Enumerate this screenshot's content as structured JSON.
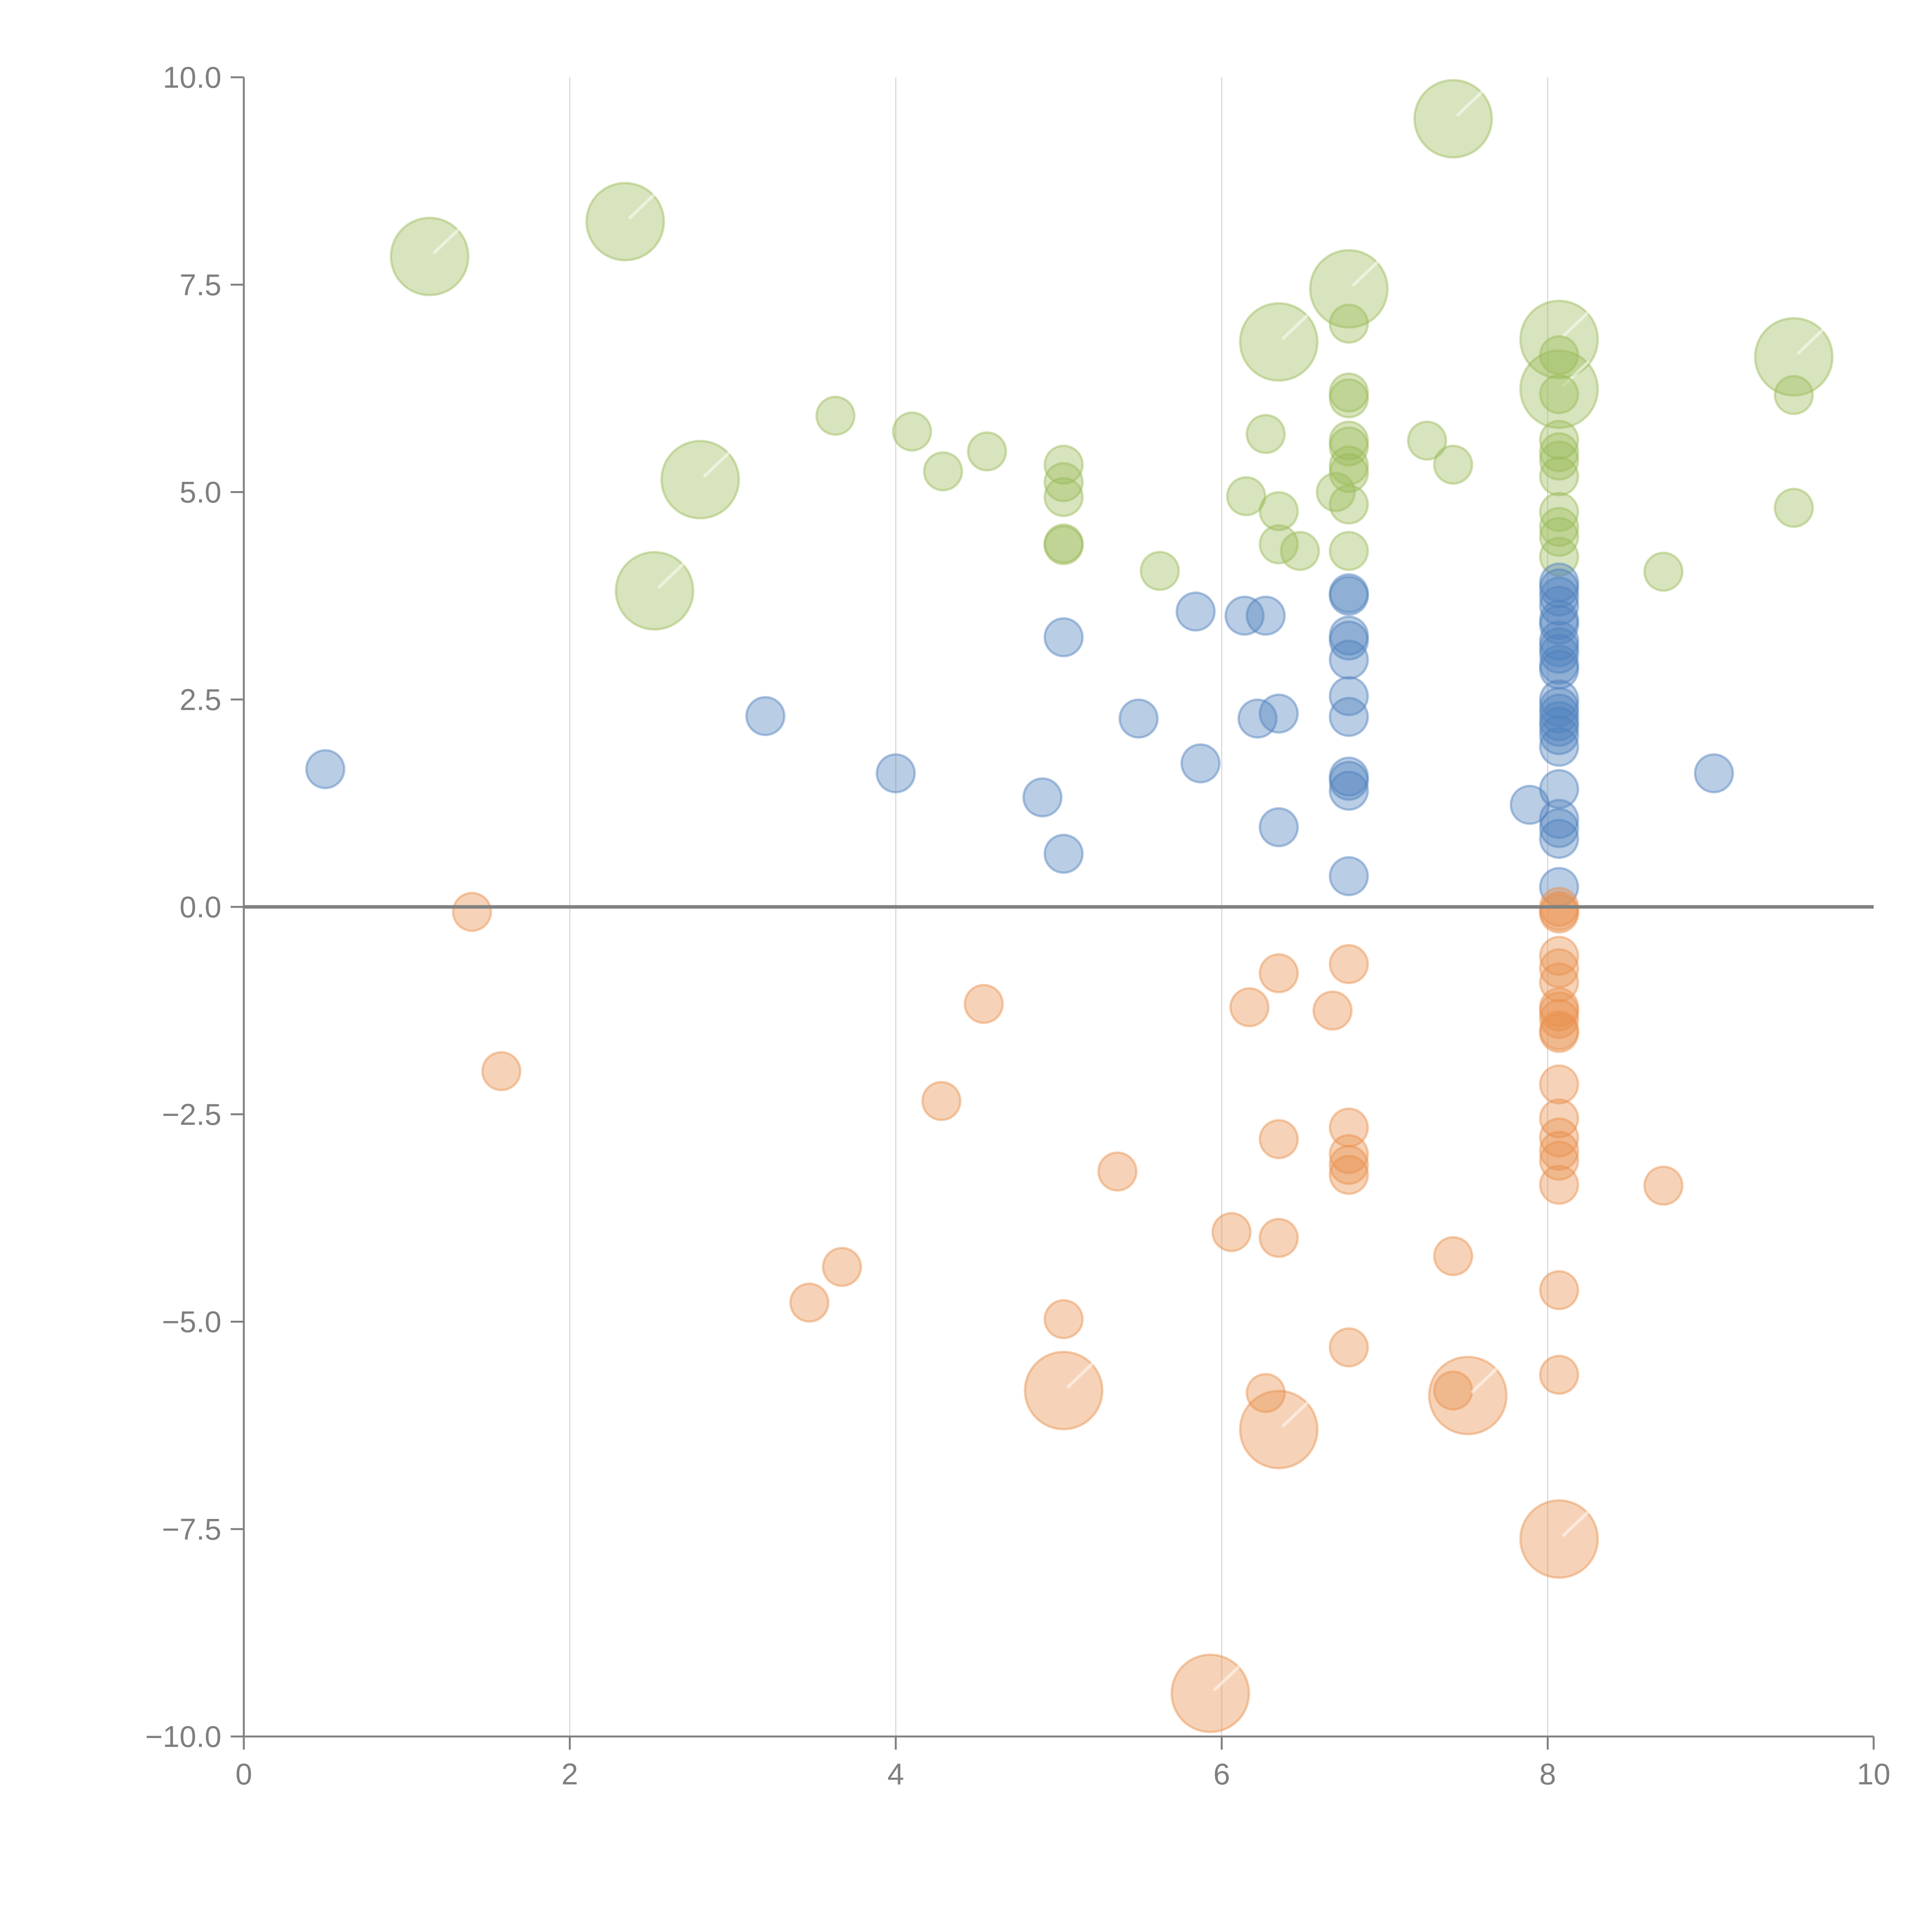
{
  "chart_data": {
    "type": "scatter",
    "title": "",
    "xlabel": "",
    "ylabel": "",
    "xlim": [
      0,
      10
    ],
    "ylim": [
      -10,
      10
    ],
    "x_ticks": [
      "0",
      "2",
      "4",
      "6",
      "8",
      "10"
    ],
    "y_ticks": [
      "10.0",
      "7.5",
      "5.0",
      "2.5",
      "0.0",
      "−2.5",
      "−5.0",
      "−7.5",
      "−10.0"
    ],
    "x_tick_values": [
      0,
      2,
      4,
      6,
      8,
      10
    ],
    "y_tick_values": [
      10,
      7.5,
      5,
      2.5,
      0,
      -2.5,
      -5,
      -7.5,
      -10
    ],
    "grid": {
      "vertical": true,
      "horizontal": false
    },
    "reference_line_y": 0,
    "size_note": "small bubbles size 1, large bubbles size 4",
    "series": [
      {
        "name": "green",
        "color": "#9bbb59",
        "points": [
          [
            1.14,
            7.84,
            4
          ],
          [
            2.34,
            8.26,
            4
          ],
          [
            2.8,
            5.15,
            4
          ],
          [
            2.52,
            3.81,
            4
          ],
          [
            3.63,
            5.92,
            1
          ],
          [
            4.1,
            5.73,
            1
          ],
          [
            4.29,
            5.25,
            1
          ],
          [
            4.56,
            5.49,
            1
          ],
          [
            5.03,
            5.33,
            1
          ],
          [
            5.03,
            5.12,
            1
          ],
          [
            5.03,
            4.94,
            1
          ],
          [
            5.03,
            4.38,
            1
          ],
          [
            5.03,
            4.36,
            1
          ],
          [
            5.62,
            4.05,
            1
          ],
          [
            6.15,
            4.95,
            1
          ],
          [
            6.27,
            5.7,
            1
          ],
          [
            6.35,
            4.77,
            1
          ],
          [
            6.35,
            4.37,
            1
          ],
          [
            6.48,
            4.29,
            1
          ],
          [
            6.35,
            6.81,
            4
          ],
          [
            6.7,
            5.0,
            1
          ],
          [
            6.78,
            7.45,
            4
          ],
          [
            6.78,
            7.03,
            1
          ],
          [
            6.78,
            6.2,
            1
          ],
          [
            6.78,
            6.13,
            1
          ],
          [
            6.78,
            5.62,
            1
          ],
          [
            6.78,
            5.55,
            1
          ],
          [
            6.78,
            5.32,
            1
          ],
          [
            6.78,
            5.23,
            1
          ],
          [
            6.78,
            4.85,
            1
          ],
          [
            6.78,
            4.29,
            1
          ],
          [
            7.26,
            5.62,
            1
          ],
          [
            7.42,
            5.33,
            1
          ],
          [
            7.42,
            9.5,
            4
          ],
          [
            8.07,
            6.84,
            4
          ],
          [
            8.07,
            6.24,
            4
          ],
          [
            8.07,
            6.65,
            1
          ],
          [
            8.07,
            6.18,
            1
          ],
          [
            8.07,
            5.63,
            1
          ],
          [
            8.07,
            5.48,
            1
          ],
          [
            8.07,
            5.38,
            1
          ],
          [
            8.07,
            5.19,
            1
          ],
          [
            8.07,
            4.76,
            1
          ],
          [
            8.07,
            4.58,
            1
          ],
          [
            8.07,
            4.46,
            1
          ],
          [
            8.07,
            4.22,
            1
          ],
          [
            8.71,
            4.04,
            1
          ],
          [
            9.51,
            6.63,
            4
          ],
          [
            9.51,
            6.17,
            1
          ],
          [
            9.51,
            4.81,
            1
          ]
        ]
      },
      {
        "name": "blue",
        "color": "#4f81bd",
        "points": [
          [
            0.5,
            1.66,
            1
          ],
          [
            3.2,
            2.3,
            1
          ],
          [
            4.0,
            1.61,
            1
          ],
          [
            4.9,
            1.32,
            1
          ],
          [
            5.03,
            3.25,
            1
          ],
          [
            5.03,
            0.64,
            1
          ],
          [
            5.49,
            2.27,
            1
          ],
          [
            5.84,
            3.56,
            1
          ],
          [
            5.87,
            1.73,
            1
          ],
          [
            6.14,
            3.51,
            1
          ],
          [
            6.27,
            3.51,
            1
          ],
          [
            6.22,
            2.27,
            1
          ],
          [
            6.35,
            2.33,
            1
          ],
          [
            6.35,
            0.96,
            1
          ],
          [
            6.78,
            3.78,
            1
          ],
          [
            6.78,
            3.75,
            1
          ],
          [
            6.78,
            3.27,
            1
          ],
          [
            6.78,
            3.21,
            1
          ],
          [
            6.78,
            2.98,
            1
          ],
          [
            6.78,
            2.54,
            1
          ],
          [
            6.78,
            2.29,
            1
          ],
          [
            6.78,
            1.57,
            1
          ],
          [
            6.78,
            1.52,
            1
          ],
          [
            6.78,
            1.4,
            1
          ],
          [
            6.78,
            0.37,
            1
          ],
          [
            7.89,
            1.23,
            1
          ],
          [
            8.07,
            3.91,
            1
          ],
          [
            8.07,
            3.84,
            1
          ],
          [
            8.07,
            3.74,
            1
          ],
          [
            8.07,
            3.63,
            1
          ],
          [
            8.07,
            3.46,
            1
          ],
          [
            8.07,
            3.4,
            1
          ],
          [
            8.07,
            3.21,
            1
          ],
          [
            8.07,
            3.13,
            1
          ],
          [
            8.07,
            3.05,
            1
          ],
          [
            8.07,
            2.92,
            1
          ],
          [
            8.07,
            2.86,
            1
          ],
          [
            8.07,
            2.5,
            1
          ],
          [
            8.07,
            2.41,
            1
          ],
          [
            8.07,
            2.33,
            1
          ],
          [
            8.07,
            2.24,
            1
          ],
          [
            8.07,
            2.17,
            1
          ],
          [
            8.07,
            2.07,
            1
          ],
          [
            8.07,
            1.93,
            1
          ],
          [
            8.07,
            1.42,
            1
          ],
          [
            8.07,
            1.06,
            1
          ],
          [
            8.07,
            0.95,
            1
          ],
          [
            8.07,
            0.82,
            1
          ],
          [
            8.07,
            0.24,
            1
          ],
          [
            9.02,
            1.61,
            1
          ]
        ]
      },
      {
        "name": "orange",
        "color": "#e8914d",
        "points": [
          [
            1.4,
            -0.06,
            1
          ],
          [
            1.58,
            -1.98,
            1
          ],
          [
            3.47,
            -4.77,
            1
          ],
          [
            3.67,
            -4.34,
            1
          ],
          [
            4.28,
            -2.34,
            1
          ],
          [
            4.54,
            -1.17,
            1
          ],
          [
            5.03,
            -4.97,
            1
          ],
          [
            5.03,
            -5.83,
            4
          ],
          [
            5.36,
            -3.19,
            1
          ],
          [
            5.93,
            -9.48,
            4
          ],
          [
            6.06,
            -3.92,
            1
          ],
          [
            6.17,
            -1.21,
            1
          ],
          [
            6.27,
            -5.86,
            1
          ],
          [
            6.35,
            -0.8,
            1
          ],
          [
            6.35,
            -2.8,
            1
          ],
          [
            6.35,
            -3.99,
            1
          ],
          [
            6.35,
            -6.3,
            4
          ],
          [
            6.68,
            -1.25,
            1
          ],
          [
            6.78,
            -0.69,
            1
          ],
          [
            6.78,
            -2.66,
            1
          ],
          [
            6.78,
            -2.98,
            1
          ],
          [
            6.78,
            -3.11,
            1
          ],
          [
            6.78,
            -3.23,
            1
          ],
          [
            6.78,
            -5.31,
            1
          ],
          [
            7.42,
            -4.21,
            1
          ],
          [
            7.42,
            -5.83,
            1
          ],
          [
            7.51,
            -5.89,
            4
          ],
          [
            8.07,
            0.0,
            1
          ],
          [
            8.07,
            -0.05,
            1
          ],
          [
            8.07,
            -0.08,
            1
          ],
          [
            8.07,
            -0.59,
            1
          ],
          [
            8.07,
            -0.74,
            1
          ],
          [
            8.07,
            -0.91,
            1
          ],
          [
            8.07,
            -1.21,
            1
          ],
          [
            8.07,
            -1.26,
            1
          ],
          [
            8.07,
            -1.35,
            1
          ],
          [
            8.07,
            -1.49,
            1
          ],
          [
            8.07,
            -1.52,
            1
          ],
          [
            8.07,
            -2.14,
            1
          ],
          [
            8.07,
            -2.55,
            1
          ],
          [
            8.07,
            -2.78,
            1
          ],
          [
            8.07,
            -2.94,
            1
          ],
          [
            8.07,
            -3.06,
            1
          ],
          [
            8.07,
            -3.35,
            1
          ],
          [
            8.07,
            -4.62,
            1
          ],
          [
            8.07,
            -5.64,
            1
          ],
          [
            8.07,
            -7.62,
            4
          ],
          [
            8.71,
            -3.36,
            1
          ]
        ]
      }
    ],
    "colors": {
      "axis": "#808080",
      "grid": "#d9d9d9",
      "zero_line": "#808080"
    }
  }
}
